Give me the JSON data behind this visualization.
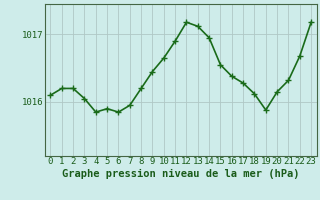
{
  "x": [
    0,
    1,
    2,
    3,
    4,
    5,
    6,
    7,
    8,
    9,
    10,
    11,
    12,
    13,
    14,
    15,
    16,
    17,
    18,
    19,
    20,
    21,
    22,
    23
  ],
  "y": [
    1016.1,
    1016.2,
    1016.2,
    1016.05,
    1015.85,
    1015.9,
    1015.85,
    1015.95,
    1016.2,
    1016.45,
    1016.65,
    1016.9,
    1017.18,
    1017.12,
    1016.95,
    1016.55,
    1016.38,
    1016.28,
    1016.12,
    1015.88,
    1016.15,
    1016.32,
    1016.68,
    1017.18
  ],
  "line_color": "#1a6b1a",
  "marker": "+",
  "marker_size": 4,
  "marker_edge_width": 1.0,
  "bg_color": "#ceecea",
  "grid_color": "#b0c8c6",
  "xlabel": "Graphe pression niveau de la mer (hPa)",
  "yticks": [
    1016,
    1017
  ],
  "ylim": [
    1015.2,
    1017.45
  ],
  "xlim": [
    -0.5,
    23.5
  ],
  "line_color_dark": "#1a5c1a",
  "xlabel_fontsize": 7.5,
  "tick_fontsize": 6.5,
  "line_width": 1.2,
  "figsize": [
    3.2,
    2.0
  ],
  "dpi": 100
}
